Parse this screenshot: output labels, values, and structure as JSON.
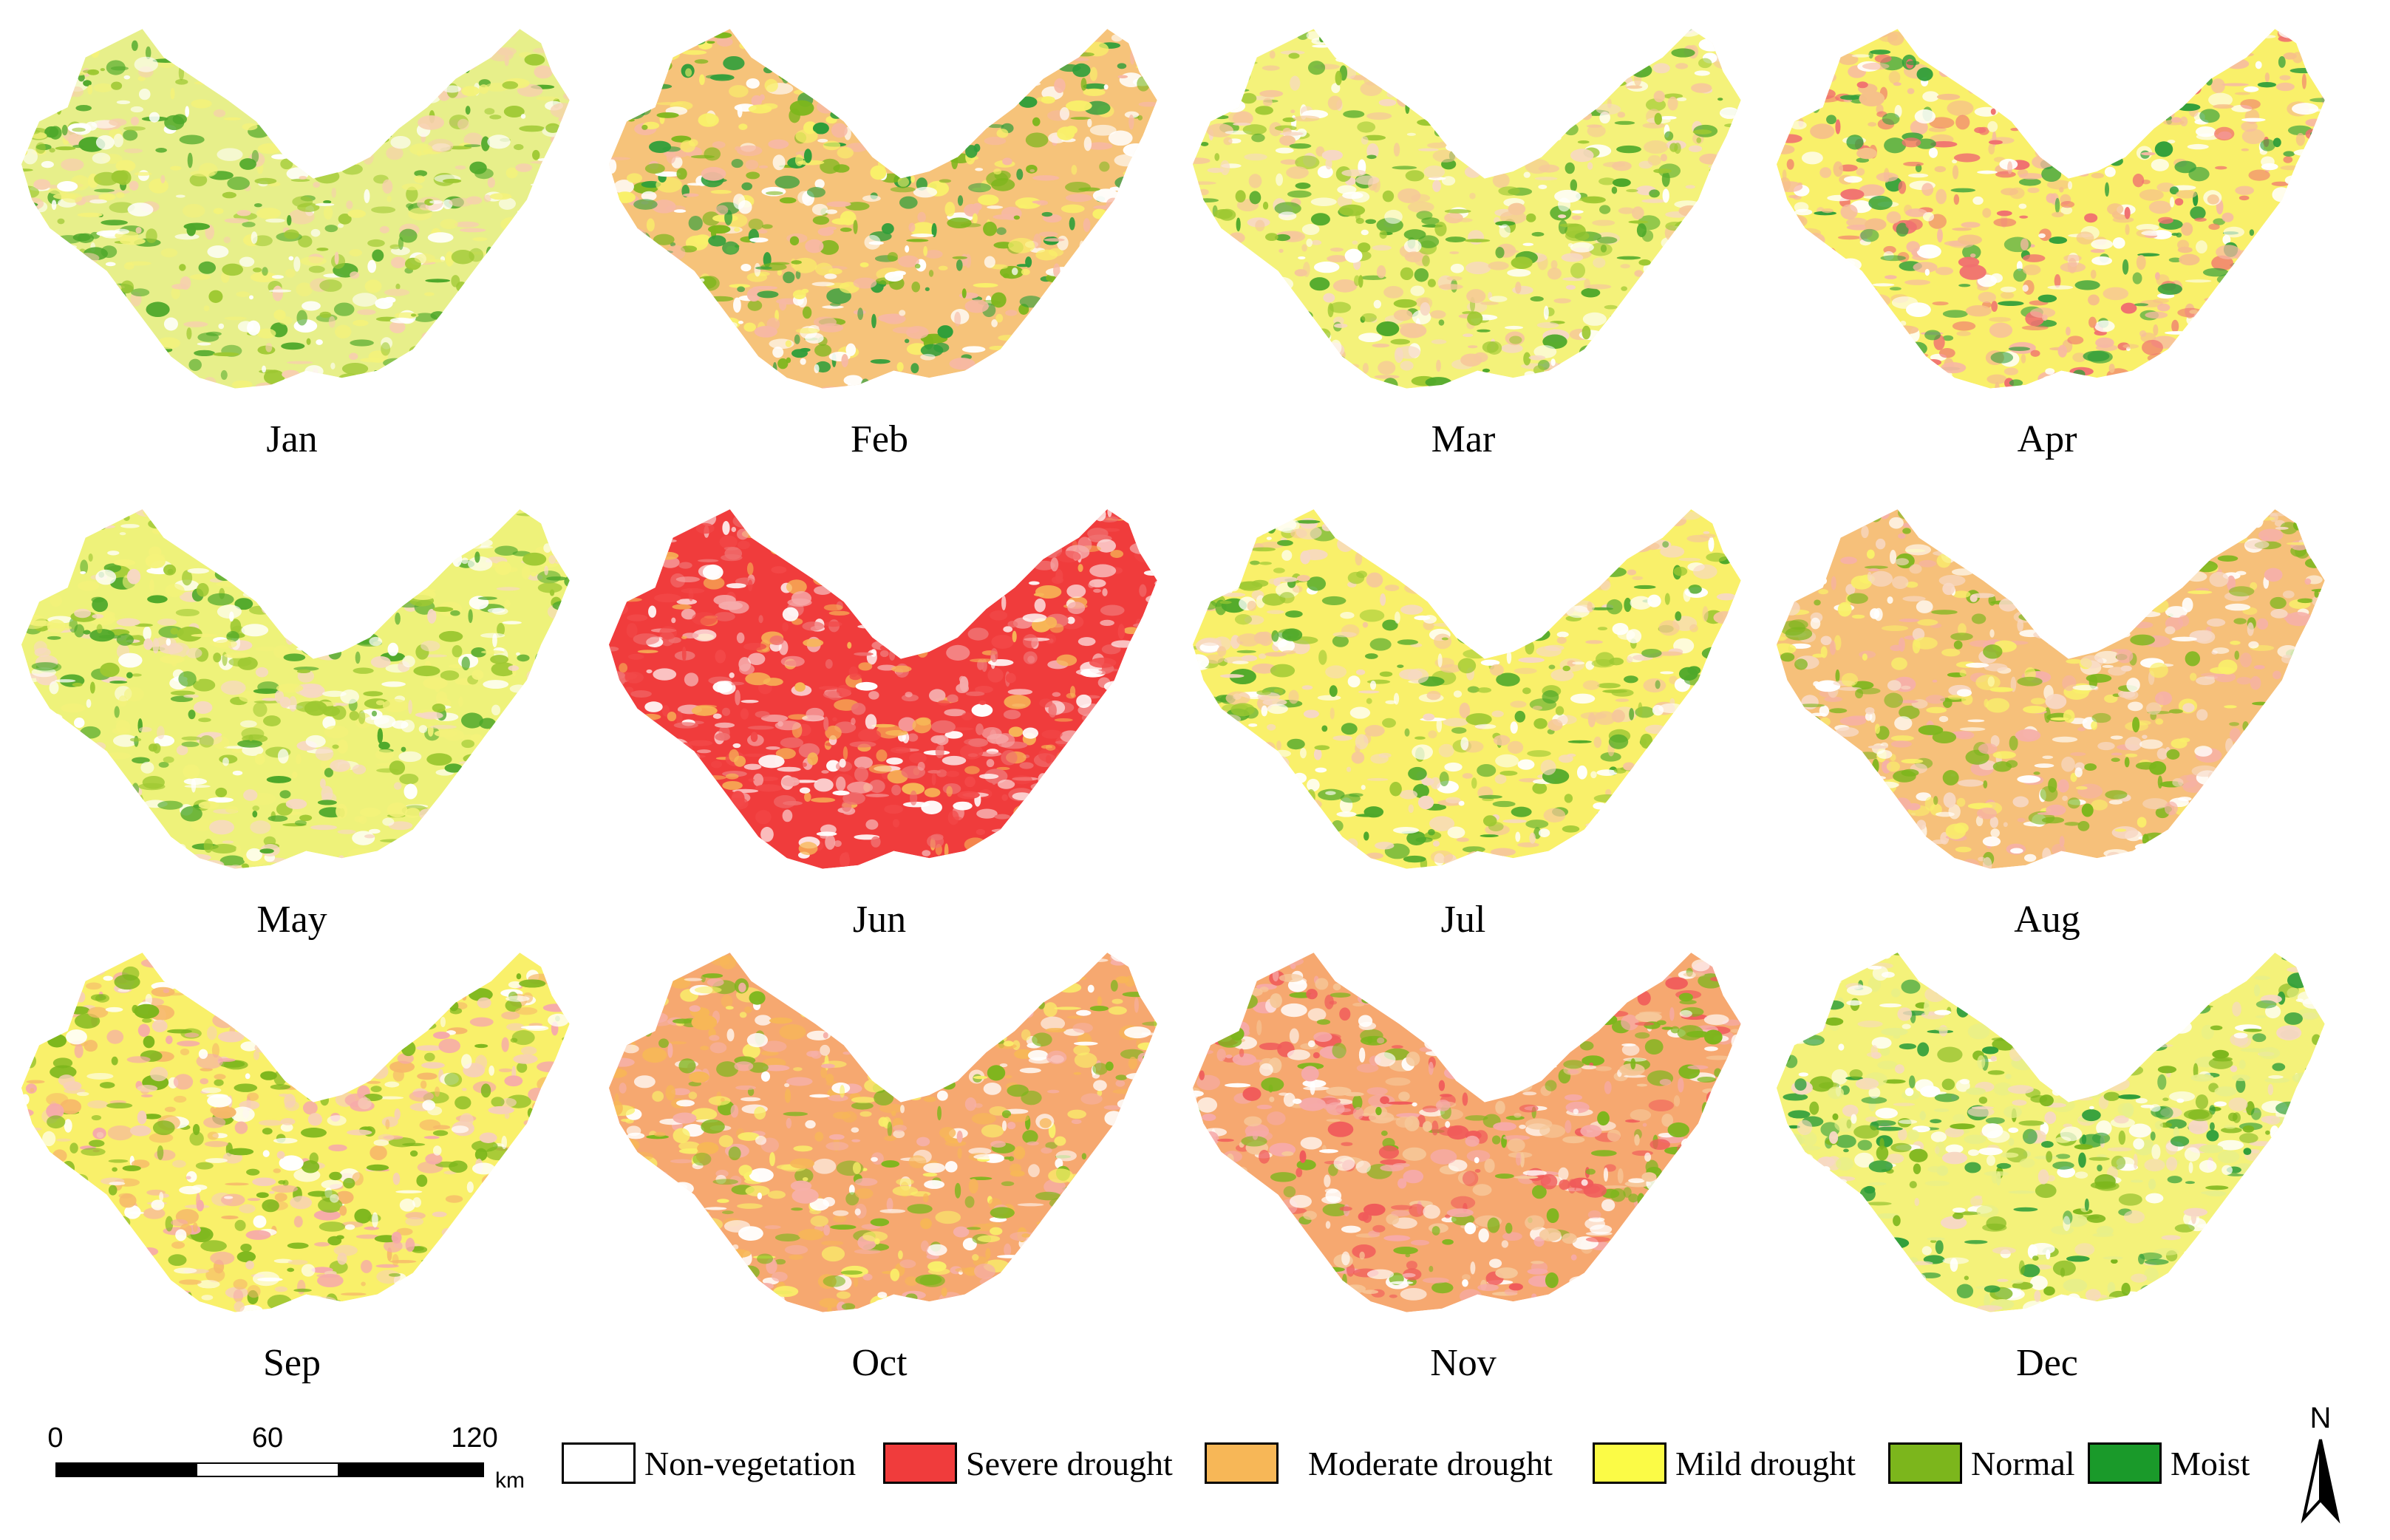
{
  "months": [
    "Jan",
    "Feb",
    "Mar",
    "Apr",
    "May",
    "Jun",
    "Jul",
    "Aug",
    "Sep",
    "Oct",
    "Nov",
    "Dec"
  ],
  "class_colors": {
    "non_vegetation": "#ffffff",
    "severe_drought": "#f03c3c",
    "moderate_drought": "#f7b757",
    "mild_drought": "#fbfb46",
    "normal": "#7cb61c",
    "moist": "#1a9a2a",
    "light_severe": "#f6aaaa"
  },
  "panel_palettes": [
    [
      "#e7ef8a",
      "#9dc832",
      "#f4f27a",
      "#f7cfae",
      "#ffffff",
      "#4ea82a"
    ],
    [
      "#f6c37a",
      "#2f9e3a",
      "#7cb61c",
      "#f9f06a",
      "#f7b8a4",
      "#ffffff"
    ],
    [
      "#f4f27a",
      "#f6c89a",
      "#9dc832",
      "#f7d8c4",
      "#ffffff",
      "#4ea82a"
    ],
    [
      "#f9f06a",
      "#f6c08a",
      "#f07070",
      "#f7b8a4",
      "#ffffff",
      "#2f9e3a"
    ],
    [
      "#eef27a",
      "#9dc832",
      "#f7d8c4",
      "#4ea82a",
      "#f4f27a",
      "#ffffff"
    ],
    [
      "#f03c3c",
      "#f07070",
      "#f6aaaa",
      "#ffffff",
      "#f24848",
      "#f7b757"
    ],
    [
      "#f9f06a",
      "#f6c89a",
      "#f7d8c4",
      "#9dc832",
      "#ffffff",
      "#4ea82a"
    ],
    [
      "#f6c07a",
      "#f9f06a",
      "#f7d8c4",
      "#f6b0a8",
      "#ffffff",
      "#7cb61c"
    ],
    [
      "#f9f06a",
      "#f6b86a",
      "#f7d0b8",
      "#7cb61c",
      "#ffffff",
      "#f6aaaa"
    ],
    [
      "#f6a870",
      "#f7b757",
      "#f6b0a8",
      "#f9f06a",
      "#ffffff",
      "#7cb61c"
    ],
    [
      "#f6a870",
      "#f05a5a",
      "#f6c89a",
      "#f6aaaa",
      "#ffffff",
      "#7cb61c"
    ],
    [
      "#f4f27a",
      "#7cb61c",
      "#2f9e3a",
      "#e7ef8a",
      "#ffffff",
      "#f7d8c4"
    ]
  ],
  "scale": {
    "ticks": [
      "0",
      "60",
      "120"
    ],
    "unit": "km",
    "bar_colors": [
      "#000000",
      "#ffffff",
      "#000000"
    ]
  },
  "legend": [
    {
      "label": "Non-vegetation",
      "color": "#ffffff"
    },
    {
      "label": "Severe drought",
      "color": "#f03c3c"
    },
    {
      "label": "Moderate drought",
      "color": "#f7b757"
    },
    {
      "label": "Mild drought",
      "color": "#fbfb46"
    },
    {
      "label": "Normal",
      "color": "#7cb61c"
    },
    {
      "label": "Moist",
      "color": "#1a9a2a"
    }
  ],
  "north_arrow": {
    "label": "N"
  }
}
